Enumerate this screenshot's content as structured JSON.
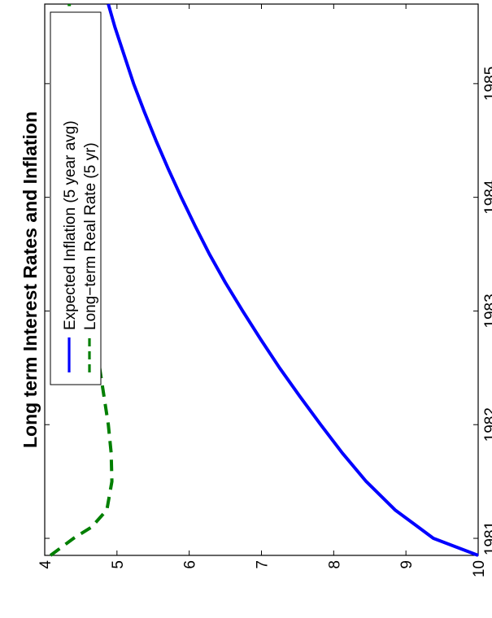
{
  "chart_data": {
    "type": "line",
    "orientation": "rotated 90 degrees counter-clockwise",
    "title": "Long term Interest Rates and Inflation",
    "xlabel": "",
    "ylabel": "",
    "xlim": [
      1980.85,
      1985.7
    ],
    "ylim": [
      4,
      10
    ],
    "x_ticks": [
      1981,
      1982,
      1983,
      1984,
      1985
    ],
    "y_ticks": [
      4,
      5,
      6,
      7,
      8,
      9,
      10
    ],
    "grid": false,
    "legend_position": "top-left",
    "series": [
      {
        "name": "Expected Inflation (5 year avg)",
        "color": "#0000ff",
        "line_style": "solid",
        "x": [
          1980.85,
          1981.0,
          1981.25,
          1981.5,
          1981.75,
          1982.0,
          1982.25,
          1982.5,
          1982.75,
          1983.0,
          1983.25,
          1983.5,
          1983.75,
          1984.0,
          1984.25,
          1984.5,
          1984.75,
          1985.0,
          1985.25,
          1985.5,
          1985.7
        ],
        "y": [
          10.0,
          9.38,
          8.85,
          8.45,
          8.12,
          7.82,
          7.53,
          7.25,
          6.99,
          6.74,
          6.5,
          6.28,
          6.08,
          5.89,
          5.71,
          5.54,
          5.38,
          5.23,
          5.1,
          4.97,
          4.88
        ]
      },
      {
        "name": "Long−term Real Rate (5 yr)",
        "color": "#007f00",
        "line_style": "dashed",
        "x": [
          1980.85,
          1981.0,
          1981.1,
          1981.25,
          1981.5,
          1981.75,
          1982.0,
          1982.5,
          1983.0,
          1983.5,
          1984.0,
          1984.5,
          1985.0,
          1985.4,
          1985.7
        ],
        "y": [
          4.08,
          4.4,
          4.65,
          4.86,
          4.93,
          4.92,
          4.88,
          4.76,
          4.63,
          4.52,
          4.43,
          4.38,
          4.35,
          4.34,
          4.34
        ]
      }
    ]
  }
}
